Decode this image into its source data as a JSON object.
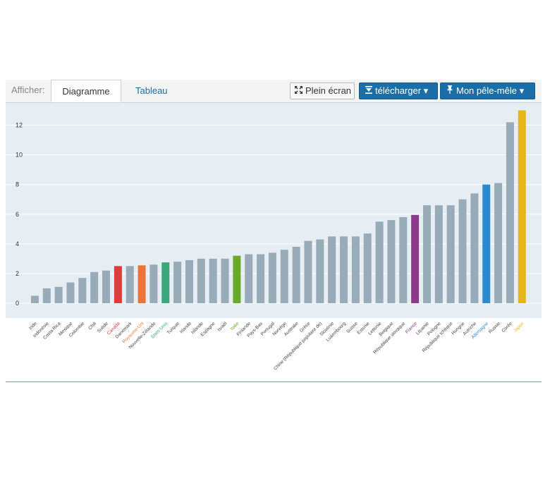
{
  "toolbar": {
    "show_label": "Afficher:",
    "tab_chart": "Diagramme",
    "tab_table": "Tableau",
    "fullscreen_label": "Plein écran",
    "download_label": "télécharger",
    "mypins_label": "Mon pêle-mêle",
    "dropdown_glyph": "▾"
  },
  "colors": {
    "bar_default": "#97abb9",
    "plot_bg": "#e6eef3",
    "grid": "#ffffff",
    "button_blue": "#1a6fa8",
    "tab_link": "#1b6f9e"
  },
  "chart_data": {
    "type": "bar",
    "ylim": [
      -1,
      13.5
    ],
    "yticks": [
      0,
      2,
      4,
      6,
      8,
      10,
      12
    ],
    "grid": true,
    "categories": [
      "Inde",
      "Indonésie",
      "Costa Rica",
      "Mexique",
      "Colombie",
      "Chili",
      "Suède",
      "Canada",
      "Danemark",
      "Royaume-Uni",
      "Nouvelle-Zélande",
      "États-Unis",
      "Turquie",
      "Irlande",
      "Islande",
      "Espagne",
      "Israël",
      "Italie",
      "Finlande",
      "Pays-Bas",
      "Portugal",
      "Norvège",
      "Australie",
      "Grèce",
      "Chine (République populaire de)",
      "Slovénie",
      "Luxembourg",
      "Suisse",
      "Estonie",
      "Lettonie",
      "Belgique",
      "République slovaque",
      "France",
      "Lituanie",
      "Pologne",
      "République tchèque",
      "Hongrie",
      "Autriche",
      "Allemagne",
      "Russie",
      "Corée",
      "Japon"
    ],
    "values": [
      0.5,
      1.0,
      1.1,
      1.4,
      1.7,
      2.1,
      2.2,
      2.5,
      2.5,
      2.55,
      2.6,
      2.75,
      2.8,
      2.9,
      3.0,
      3.0,
      3.0,
      3.2,
      3.3,
      3.3,
      3.4,
      3.6,
      3.8,
      4.2,
      4.3,
      4.5,
      4.5,
      4.5,
      4.7,
      5.5,
      5.6,
      5.8,
      5.95,
      6.6,
      6.6,
      6.6,
      7.0,
      7.4,
      8.0,
      8.1,
      12.2,
      13.0
    ],
    "highlights": {
      "Canada": "#e03a3a",
      "Royaume-Uni": "#e8743b",
      "États-Unis": "#3aa87a",
      "Italie": "#6aaa2a",
      "France": "#8a3a8a",
      "Allemagne": "#2a8ad0",
      "Japon": "#e3b718"
    }
  }
}
